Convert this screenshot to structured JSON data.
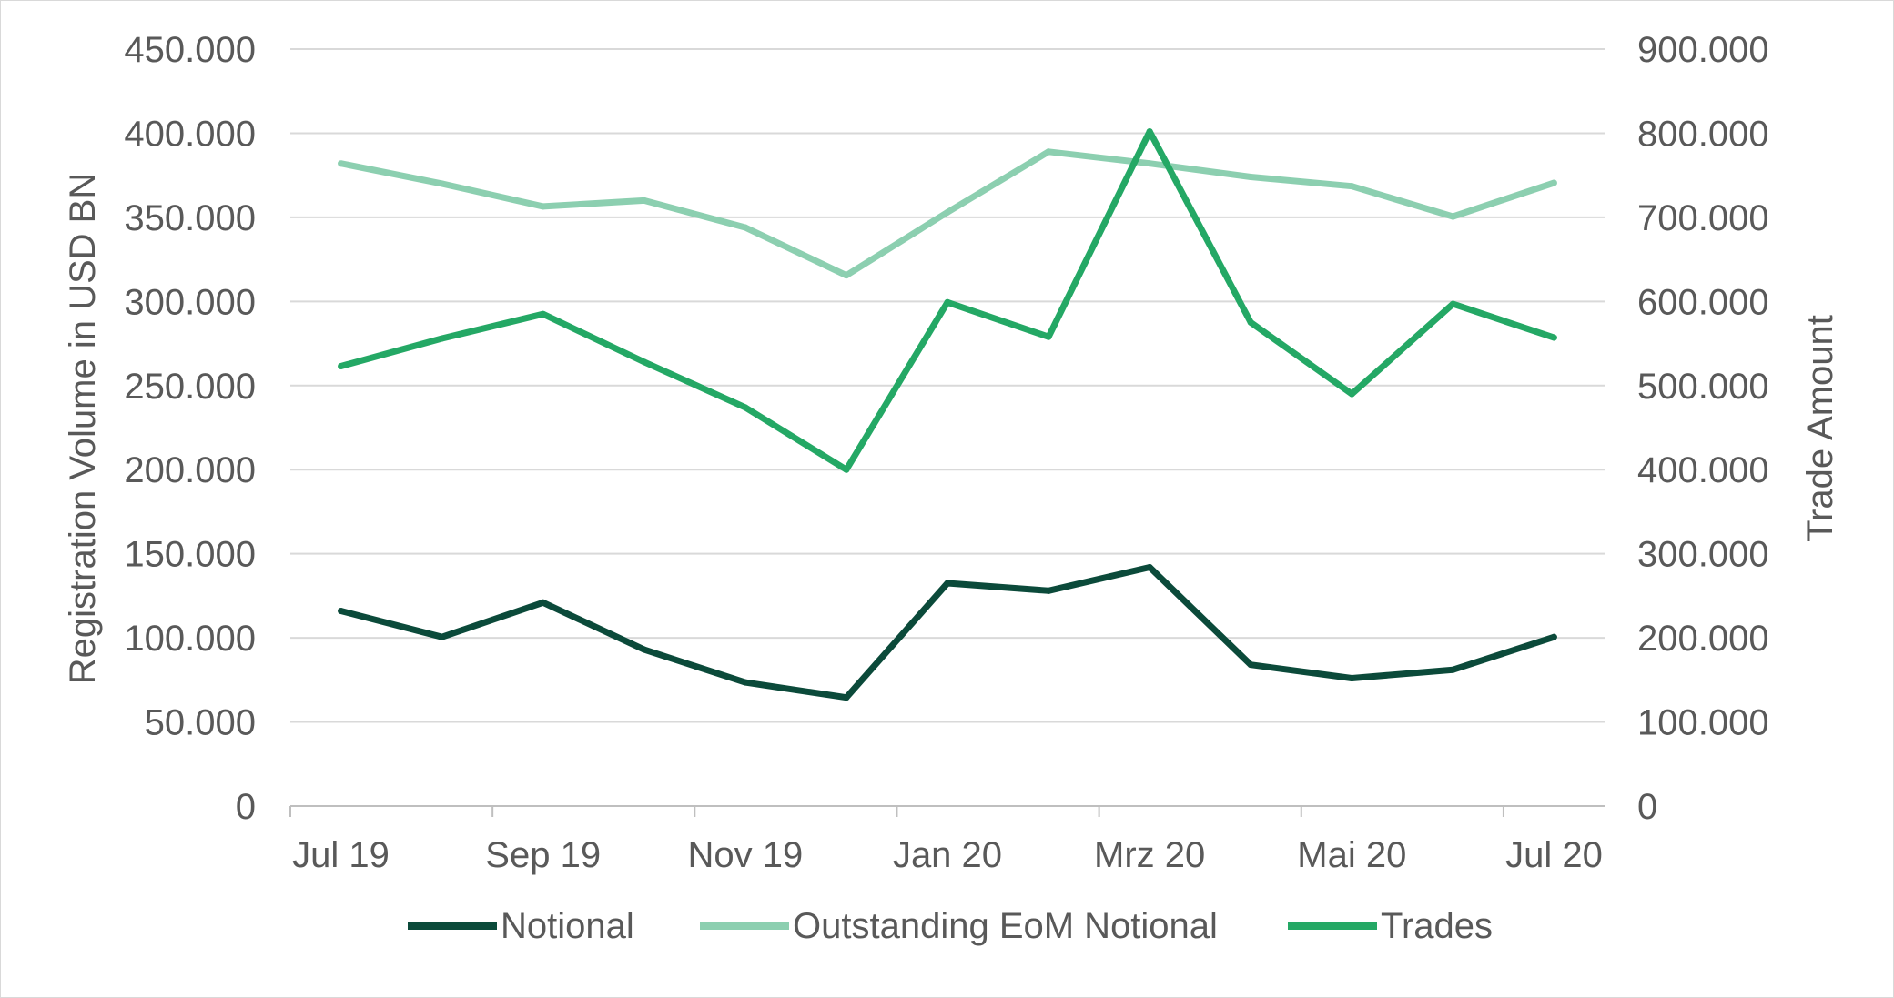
{
  "chart_data": {
    "type": "line",
    "title": "",
    "x": [
      "Jul 19",
      "Aug 19",
      "Sep 19",
      "Okt 19",
      "Nov 19",
      "Dez 19",
      "Jan 20",
      "Feb 20",
      "Mrz 20",
      "Apr 20",
      "Mai 20",
      "Jun 20",
      "Jul 20"
    ],
    "x_tick_labels": [
      "Jul 19",
      "Sep 19",
      "Nov 19",
      "Jan 20",
      "Mrz 20",
      "Mai 20",
      "Jul 20"
    ],
    "ylabel_left": "Registration Volume in USD BN",
    "ylabel_right": "Trade Amount",
    "ylim_left": [
      0,
      450000
    ],
    "ylim_right": [
      0,
      900000
    ],
    "yticks_left": [
      "0",
      "50.000",
      "100.000",
      "150.000",
      "200.000",
      "250.000",
      "300.000",
      "350.000",
      "400.000",
      "450.000"
    ],
    "yticks_right": [
      "0",
      "100.000",
      "200.000",
      "300.000",
      "400.000",
      "500.000",
      "600.000",
      "700.000",
      "800.000",
      "900.000"
    ],
    "grid": true,
    "legend_position": "bottom",
    "series": [
      {
        "name": "Notional",
        "axis": "left",
        "color": "#0b4a3a",
        "values": [
          116000,
          100500,
          121000,
          93000,
          73500,
          64500,
          132500,
          128000,
          142000,
          84000,
          76000,
          81000,
          100500
        ]
      },
      {
        "name": "Outstanding EoM Notional",
        "axis": "left",
        "color": "#8ccfb0",
        "values": [
          382000,
          370000,
          356500,
          360000,
          344000,
          315500,
          353000,
          389000,
          382000,
          374000,
          368500,
          350500,
          370500
        ]
      },
      {
        "name": "Trades",
        "axis": "right",
        "color": "#24a865",
        "values": [
          523000,
          556000,
          585000,
          528000,
          474000,
          400000,
          599000,
          558000,
          802000,
          575000,
          490000,
          597000,
          557000
        ]
      }
    ]
  }
}
